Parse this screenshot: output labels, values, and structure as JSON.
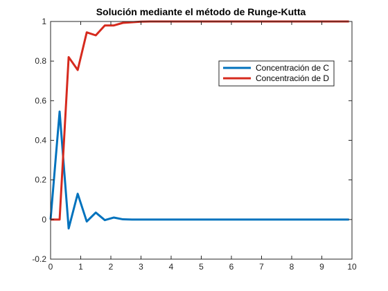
{
  "chart_data": {
    "type": "line",
    "title": "Solución mediante el método de Runge-Kutta",
    "xlabel": "",
    "ylabel": "",
    "xlim": [
      0,
      10
    ],
    "ylim": [
      -0.2,
      1
    ],
    "xticks": [
      0,
      1,
      2,
      3,
      4,
      5,
      6,
      7,
      8,
      9,
      10
    ],
    "yticks": [
      -0.2,
      0,
      0.2,
      0.4,
      0.6,
      0.8,
      1
    ],
    "grid": false,
    "legend_position": "top-right",
    "x": [
      0,
      0.3,
      0.6,
      0.9,
      1.2,
      1.5,
      1.8,
      2.1,
      2.4,
      2.7,
      3.0,
      3.3,
      3.6,
      3.9,
      4.2,
      4.5,
      4.8,
      5.1,
      5.4,
      5.7,
      6.0,
      6.3,
      6.6,
      6.9,
      7.2,
      7.5,
      7.8,
      8.1,
      8.4,
      8.7,
      9.0,
      9.3,
      9.6,
      9.9
    ],
    "series": [
      {
        "name": "Concentración de C",
        "color": "#0072BD",
        "values": [
          0,
          0.545,
          -0.045,
          0.13,
          -0.01,
          0.035,
          -0.003,
          0.01,
          0.001,
          0,
          0,
          0,
          0,
          0,
          0,
          0,
          0,
          0,
          0,
          0,
          0,
          0,
          0,
          0,
          0,
          0,
          0,
          0,
          0,
          0,
          0,
          0,
          0,
          0
        ]
      },
      {
        "name": "Concentración de D",
        "color": "#D62A1E",
        "values": [
          0,
          0,
          0.82,
          0.755,
          0.945,
          0.93,
          0.98,
          0.98,
          0.993,
          0.996,
          0.999,
          1,
          1,
          1,
          1,
          1,
          1,
          1,
          1,
          1,
          1,
          1,
          1,
          1,
          1,
          1,
          1,
          1,
          1,
          1,
          1,
          1,
          1,
          1
        ]
      }
    ]
  }
}
